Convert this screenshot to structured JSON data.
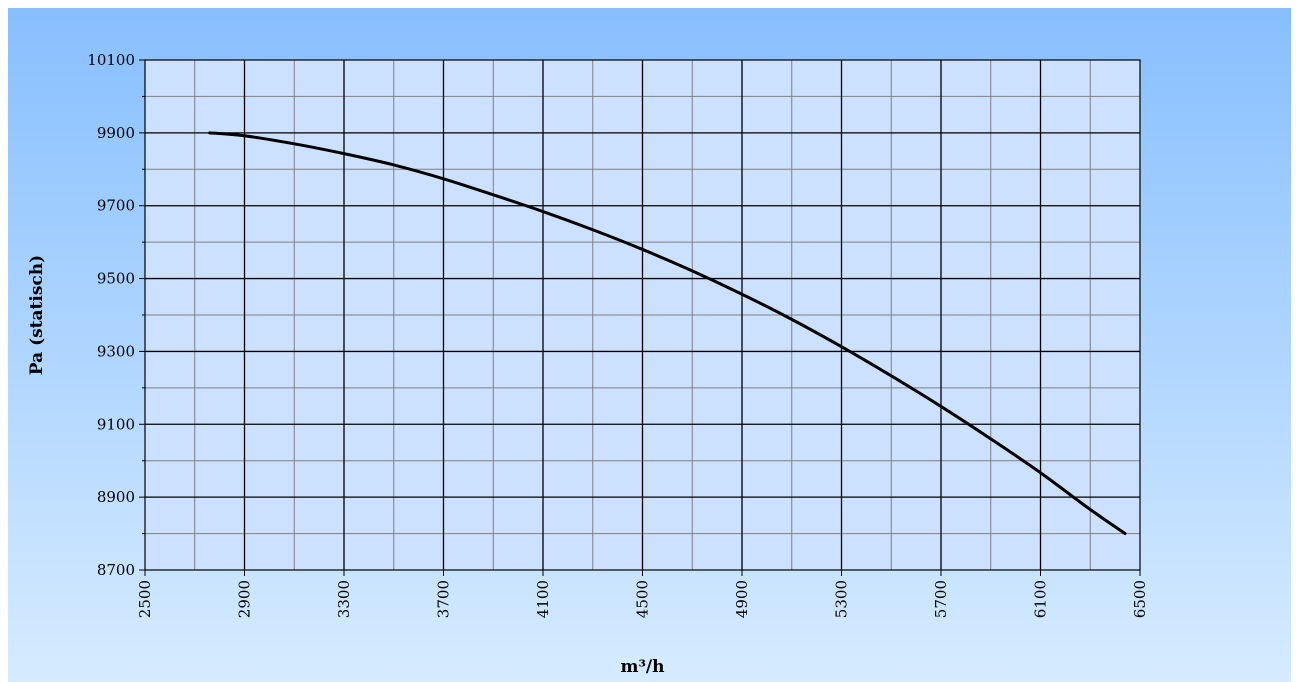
{
  "chart_data": {
    "type": "line",
    "title": "",
    "xlabel": "m³/h",
    "ylabel": "Pa  (statisch)",
    "xlim": [
      2500,
      6500
    ],
    "ylim": [
      8700,
      10100
    ],
    "x_ticks": [
      "2500",
      "2900",
      "3300",
      "3700",
      "4100",
      "4500",
      "4900",
      "5300",
      "5700",
      "6100",
      "6500"
    ],
    "y_ticks": [
      "8700",
      "8900",
      "9100",
      "9300",
      "9500",
      "9700",
      "9900",
      "10100"
    ],
    "x_minor_step": 200,
    "y_minor_step": 100,
    "grid": true,
    "series": [
      {
        "x": [
          2760,
          2900,
          3100,
          3300,
          3500,
          3700,
          3900,
          4100,
          4300,
          4500,
          4700,
          4900,
          5100,
          5300,
          5500,
          5700,
          5900,
          6100,
          6300,
          6440
        ],
        "values": [
          9900,
          9892,
          9870,
          9843,
          9812,
          9774,
          9730,
          9684,
          9634,
          9580,
          9521,
          9457,
          9388,
          9313,
          9233,
          9149,
          9060,
          8967,
          8866,
          8800
        ]
      }
    ],
    "colors": {
      "background_top": "#87BFFF",
      "background_bottom": "#D6EBFF",
      "plot_fill": "#CCE1FF",
      "major_grid": "#000000",
      "minor_grid": "#808080",
      "line": "#000000"
    }
  }
}
